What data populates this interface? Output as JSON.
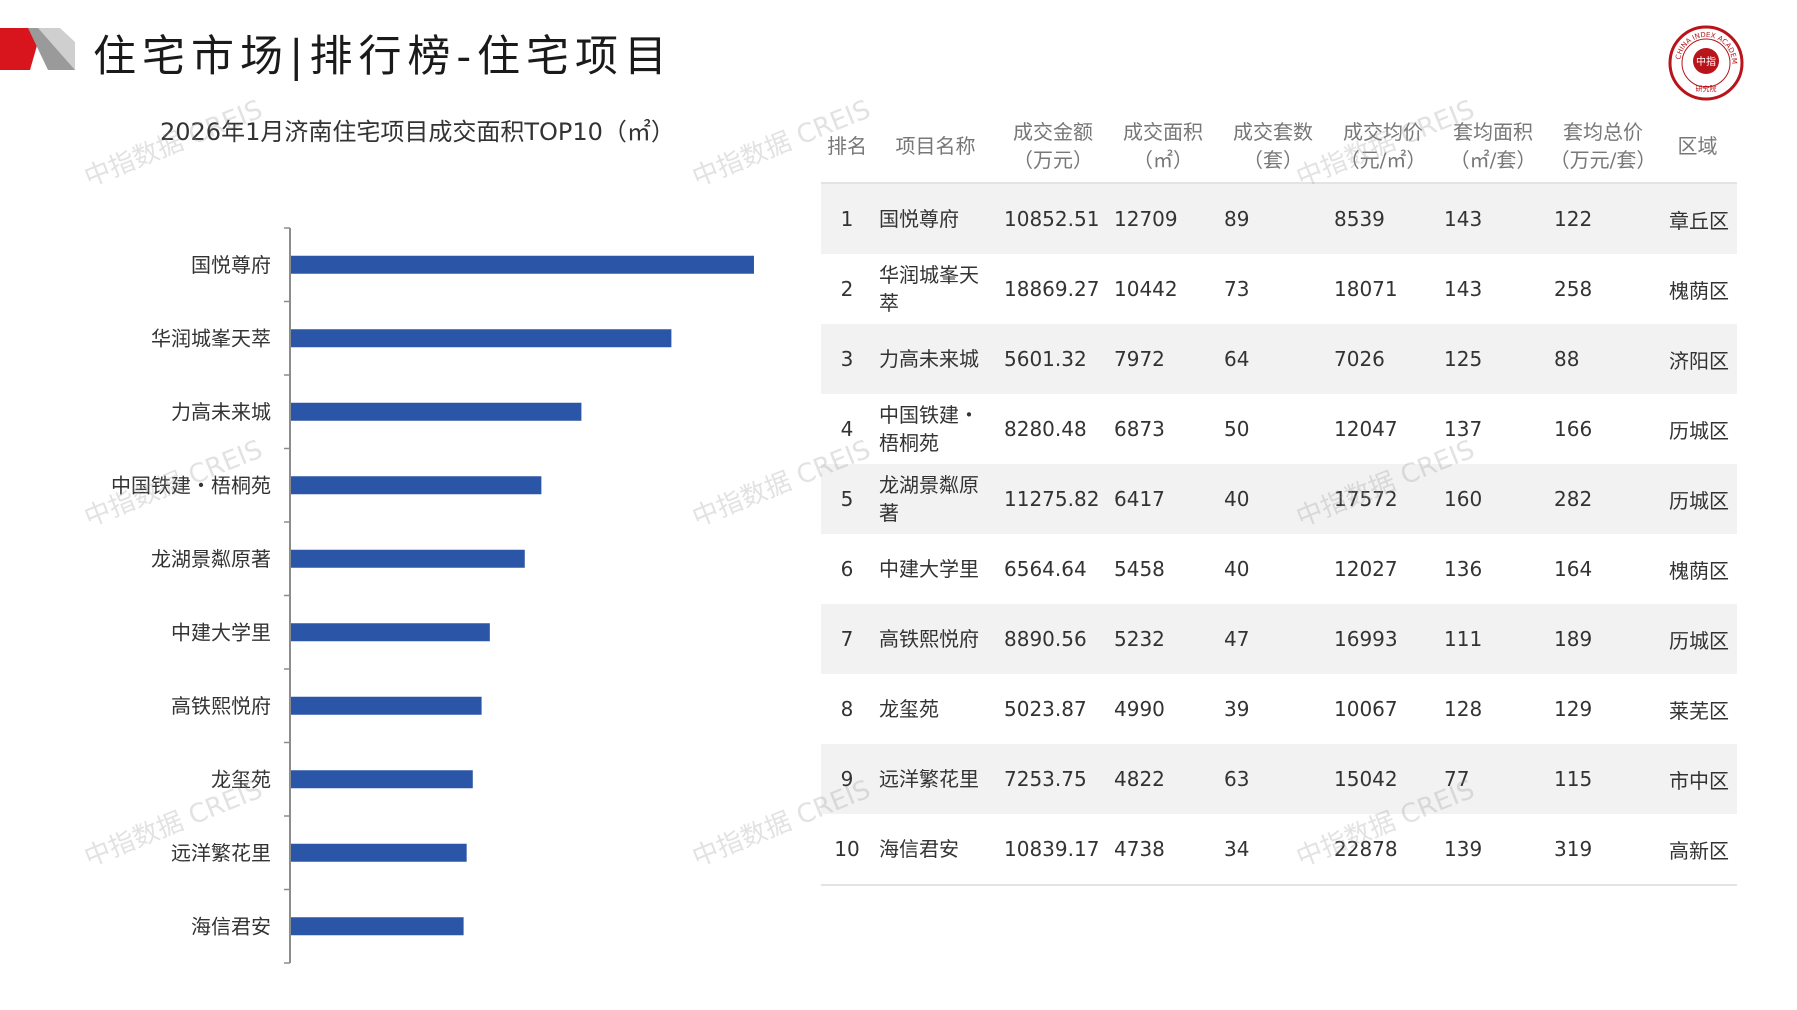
{
  "header": {
    "title": "住宅市场|排行榜-住宅项目"
  },
  "logo": {
    "ring_text": "CHINA INDEX ACADEMY",
    "center_text": "中指",
    "bottom_text": "研究院"
  },
  "watermark_text": "中指数据 CREIS",
  "chart_data": {
    "type": "bar",
    "orientation": "horizontal",
    "title": "2026年1月济南住宅项目成交面积TOP10（㎡）",
    "categories": [
      "国悦尊府",
      "华润城峯天萃",
      "力高未来城",
      "中国铁建・梧桐苑",
      "龙湖景粼原著",
      "中建大学里",
      "高铁熙悦府",
      "龙玺苑",
      "远洋繁花里",
      "海信君安"
    ],
    "values": [
      12709,
      10442,
      7972,
      6873,
      6417,
      5458,
      5232,
      4990,
      4822,
      4738
    ],
    "xlim": [
      0,
      14000
    ],
    "bar_color": "#2b55a7",
    "grid": false
  },
  "table": {
    "headers": [
      [
        "排名"
      ],
      [
        "项目名称"
      ],
      [
        "成交金额",
        "（万元）"
      ],
      [
        "成交面积",
        "（㎡）"
      ],
      [
        "成交套数",
        "（套）"
      ],
      [
        "成交均价",
        "（元/㎡）"
      ],
      [
        "套均面积",
        "（㎡/套）"
      ],
      [
        "套均总价",
        "（万元/套）"
      ],
      [
        "区域"
      ]
    ],
    "rows": [
      [
        "1",
        "国悦尊府",
        "10852.51",
        "12709",
        "89",
        "8539",
        "143",
        "122",
        "章丘区"
      ],
      [
        "2",
        "华润城峯天萃",
        "18869.27",
        "10442",
        "73",
        "18071",
        "143",
        "258",
        "槐荫区"
      ],
      [
        "3",
        "力高未来城",
        "5601.32",
        "7972",
        "64",
        "7026",
        "125",
        "88",
        "济阳区"
      ],
      [
        "4",
        "中国铁建・梧桐苑",
        "8280.48",
        "6873",
        "50",
        "12047",
        "137",
        "166",
        "历城区"
      ],
      [
        "5",
        "龙湖景粼原著",
        "11275.82",
        "6417",
        "40",
        "17572",
        "160",
        "282",
        "历城区"
      ],
      [
        "6",
        "中建大学里",
        "6564.64",
        "5458",
        "40",
        "12027",
        "136",
        "164",
        "槐荫区"
      ],
      [
        "7",
        "高铁熙悦府",
        "8890.56",
        "5232",
        "47",
        "16993",
        "111",
        "189",
        "历城区"
      ],
      [
        "8",
        "龙玺苑",
        "5023.87",
        "4990",
        "39",
        "10067",
        "128",
        "129",
        "莱芜区"
      ],
      [
        "9",
        "远洋繁花里",
        "7253.75",
        "4822",
        "63",
        "15042",
        "77",
        "115",
        "市中区"
      ],
      [
        "10",
        "海信君安",
        "10839.17",
        "4738",
        "34",
        "22878",
        "139",
        "319",
        "高新区"
      ]
    ]
  }
}
